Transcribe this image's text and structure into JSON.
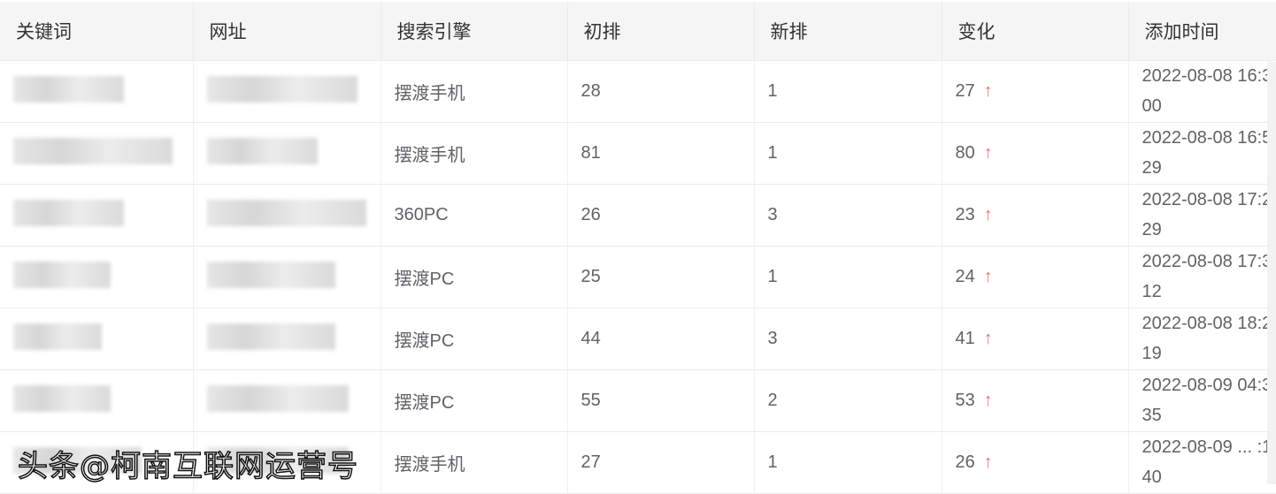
{
  "columns": [
    "关键词",
    "网址",
    "搜索引擎",
    "初排",
    "新排",
    "变化",
    "添加时间"
  ],
  "rows": [
    {
      "engine": "摆渡手机",
      "initial": "28",
      "new": "1",
      "change": "27",
      "time1": "2022-08-08 16:3",
      "time2": "00"
    },
    {
      "engine": "摆渡手机",
      "initial": "81",
      "new": "1",
      "change": "80",
      "time1": "2022-08-08 16:5",
      "time2": "29"
    },
    {
      "engine": "360PC",
      "initial": "26",
      "new": "3",
      "change": "23",
      "time1": "2022-08-08 17:2",
      "time2": "29"
    },
    {
      "engine": "摆渡PC",
      "initial": "25",
      "new": "1",
      "change": "24",
      "time1": "2022-08-08 17:3",
      "time2": "12"
    },
    {
      "engine": "摆渡PC",
      "initial": "44",
      "new": "3",
      "change": "41",
      "time1": "2022-08-08 18:2",
      "time2": "19"
    },
    {
      "engine": "摆渡PC",
      "initial": "55",
      "new": "2",
      "change": "53",
      "time1": "2022-08-09 04:3",
      "time2": "35"
    },
    {
      "engine": "摆渡手机",
      "initial": "27",
      "new": "1",
      "change": "26",
      "time1": "2022-08-09 ... :1",
      "time2": "40"
    }
  ],
  "change_icon": "arrow-up-icon",
  "accent_up": "#e57373",
  "watermark": "头条@柯南互联网运营号"
}
